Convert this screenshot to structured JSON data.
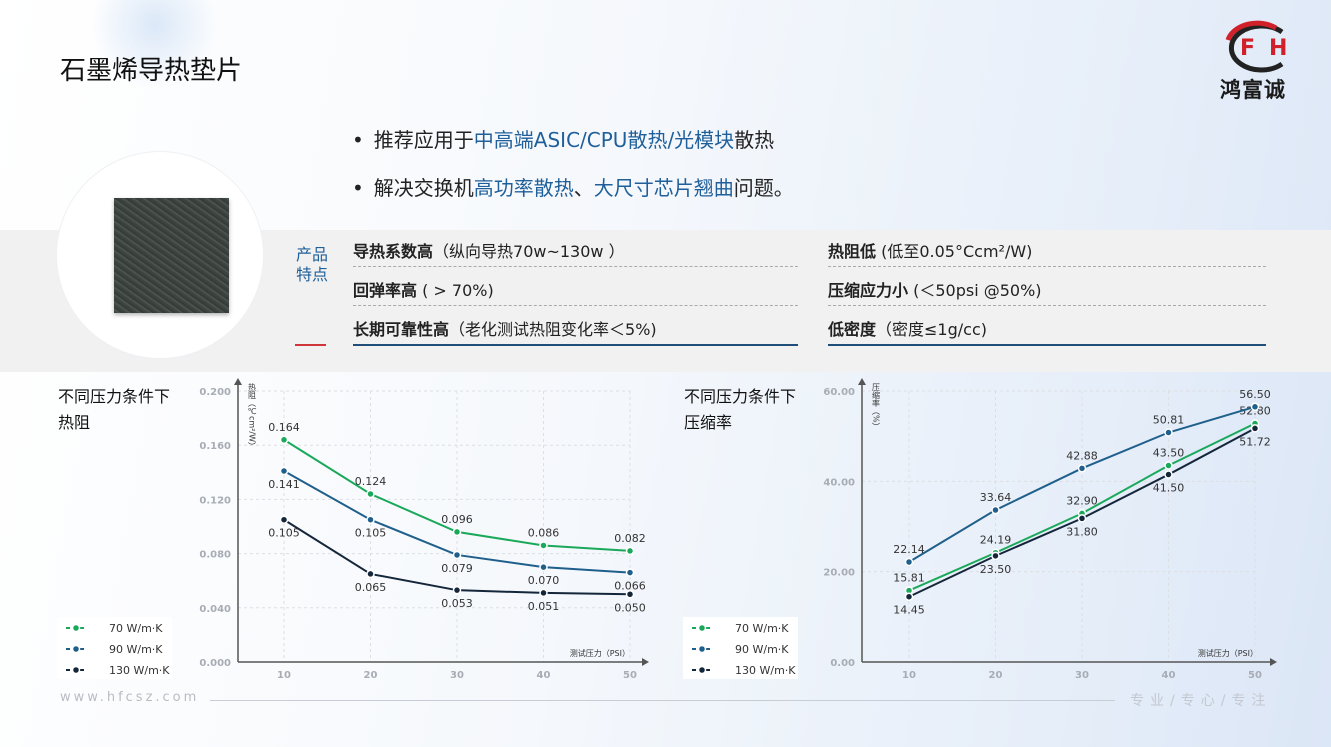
{
  "header": {
    "title": "石墨烯导热垫片",
    "logo_mark": "FH",
    "logo_text": "鸿富诚"
  },
  "bullets": [
    [
      {
        "text": "推荐应用于",
        "highlight": false
      },
      {
        "text": "中高端ASIC/CPU散热/光模块",
        "highlight": true
      },
      {
        "text": "散热",
        "highlight": false
      }
    ],
    [
      {
        "text": "解决交换机",
        "highlight": false
      },
      {
        "text": "高功率散热",
        "highlight": true
      },
      {
        "text": "、",
        "highlight": false
      },
      {
        "text": "大尺寸芯片翘曲",
        "highlight": true
      },
      {
        "text": "问题。",
        "highlight": false
      }
    ]
  ],
  "features": {
    "label": "产品特点",
    "items": [
      {
        "title": "导热系数高",
        "detail": "（纵向导热70w~130w ）"
      },
      {
        "title": "热阻低",
        "detail": " (低至0.05°Ccm²/W)"
      },
      {
        "title": "回弹率高",
        "detail": " ( > 70%)"
      },
      {
        "title": "压缩应力小",
        "detail": " (＜50psi @50%)"
      },
      {
        "title": "长期可靠性高",
        "detail": "（老化测试热阻变化率＜5%)"
      },
      {
        "title": "低密度",
        "detail": "（密度≤1g/cc)"
      }
    ]
  },
  "chart_data": [
    {
      "type": "line",
      "title": "不同压力条件下热阻",
      "y_label": "热阻（℃cm²/W）",
      "x_label": "测试压力（PSI）",
      "categories": [
        "10",
        "20",
        "30",
        "40",
        "50"
      ],
      "ylim": [
        0,
        0.2
      ],
      "yticks": [
        {
          "value": 0,
          "label": "0.000"
        },
        {
          "value": 0.04,
          "label": "0.040"
        },
        {
          "value": 0.08,
          "label": "0.080"
        },
        {
          "value": 0.12,
          "label": "0.120"
        },
        {
          "value": 0.16,
          "label": "0.160"
        },
        {
          "value": 0.2,
          "label": "0.200"
        }
      ],
      "grid": true,
      "series": [
        {
          "name": "70 W/m·K",
          "color": "#1aa85a",
          "values": [
            0.164,
            0.124,
            0.096,
            0.086,
            0.082
          ],
          "value_labels": [
            "0.164",
            "0.124",
            "0.096",
            "0.086",
            "0.082"
          ]
        },
        {
          "name": "90 W/m·K",
          "color": "#1f5f8b",
          "values": [
            0.141,
            0.105,
            0.079,
            0.07,
            0.066
          ],
          "value_labels": [
            "0.141",
            "0.105",
            "0.079",
            "0.070",
            "0.066"
          ]
        },
        {
          "name": "130 W/m·K",
          "color": "#14263a",
          "values": [
            0.105,
            0.065,
            0.053,
            0.051,
            0.05
          ],
          "value_labels": [
            "0.105",
            "0.065",
            "0.053",
            "0.051",
            "0.050"
          ]
        }
      ]
    },
    {
      "type": "line",
      "title": "不同压力条件下压缩率",
      "y_label": "压缩率（%）",
      "x_label": "测试压力（PSI）",
      "categories": [
        "10",
        "20",
        "30",
        "40",
        "50"
      ],
      "ylim": [
        0,
        60
      ],
      "yticks": [
        {
          "value": 0,
          "label": "0.00"
        },
        {
          "value": 20,
          "label": "20.00"
        },
        {
          "value": 40,
          "label": "40.00"
        },
        {
          "value": 60,
          "label": "60.00"
        }
      ],
      "grid": true,
      "series": [
        {
          "name": "70 W/m·K",
          "color": "#1aa85a",
          "values": [
            15.81,
            24.19,
            32.9,
            43.5,
            52.8
          ],
          "value_labels": [
            "15.81",
            "24.19",
            "32.90",
            "43.50",
            "52.80"
          ]
        },
        {
          "name": "90 W/m·K",
          "color": "#1f5f8b",
          "values": [
            22.14,
            33.64,
            42.88,
            50.81,
            56.5
          ],
          "value_labels": [
            "22.14",
            "33.64",
            "42.88",
            "50.81",
            "56.50"
          ]
        },
        {
          "name": "130 W/m·K",
          "color": "#14263a",
          "values": [
            14.45,
            23.5,
            31.8,
            41.5,
            51.72
          ],
          "value_labels": [
            "14.45",
            "23.50",
            "31.80",
            "41.50",
            "51.72"
          ]
        }
      ]
    }
  ],
  "footer": {
    "url": "www.hfcsz.com",
    "slogan": "专业/专心/专注"
  }
}
